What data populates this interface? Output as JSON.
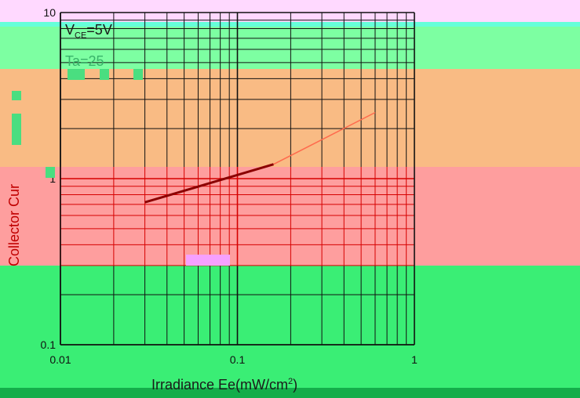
{
  "chart_data": {
    "type": "line",
    "xscale": "log",
    "yscale": "log",
    "xlim": [
      0.01,
      1
    ],
    "ylim": [
      0.1,
      10
    ],
    "xlabel": "Irradiance Ee(mW/cm",
    "xlabel_sup": "2",
    "xlabel_end": ")",
    "ylabel": "Collector Cur",
    "x_ticks": [
      "0.01",
      "0.1",
      "1"
    ],
    "y_ticks": [
      "0.1",
      "1",
      "10"
    ],
    "grid": true,
    "annotations": {
      "vce_main": "V",
      "vce_sub": "CE",
      "vce_value": "=5V",
      "ta": "Ta=25"
    },
    "series": [
      {
        "x": [
          0.03,
          0.16
        ],
        "y": [
          0.72,
          1.22
        ],
        "color": "#8b0000"
      },
      {
        "x": [
          0.16,
          0.6
        ],
        "y": [
          1.22,
          2.5
        ],
        "color": "#ff6a4d"
      }
    ],
    "colors": {
      "background_top": "#7dffa2",
      "band_orange": "#f9bb84",
      "band_pink": "#fe9e9e",
      "band_green": "#3aee75",
      "grid_red": "#d60000",
      "grid_dark": "#111111",
      "footer": "#14ad4a"
    }
  }
}
